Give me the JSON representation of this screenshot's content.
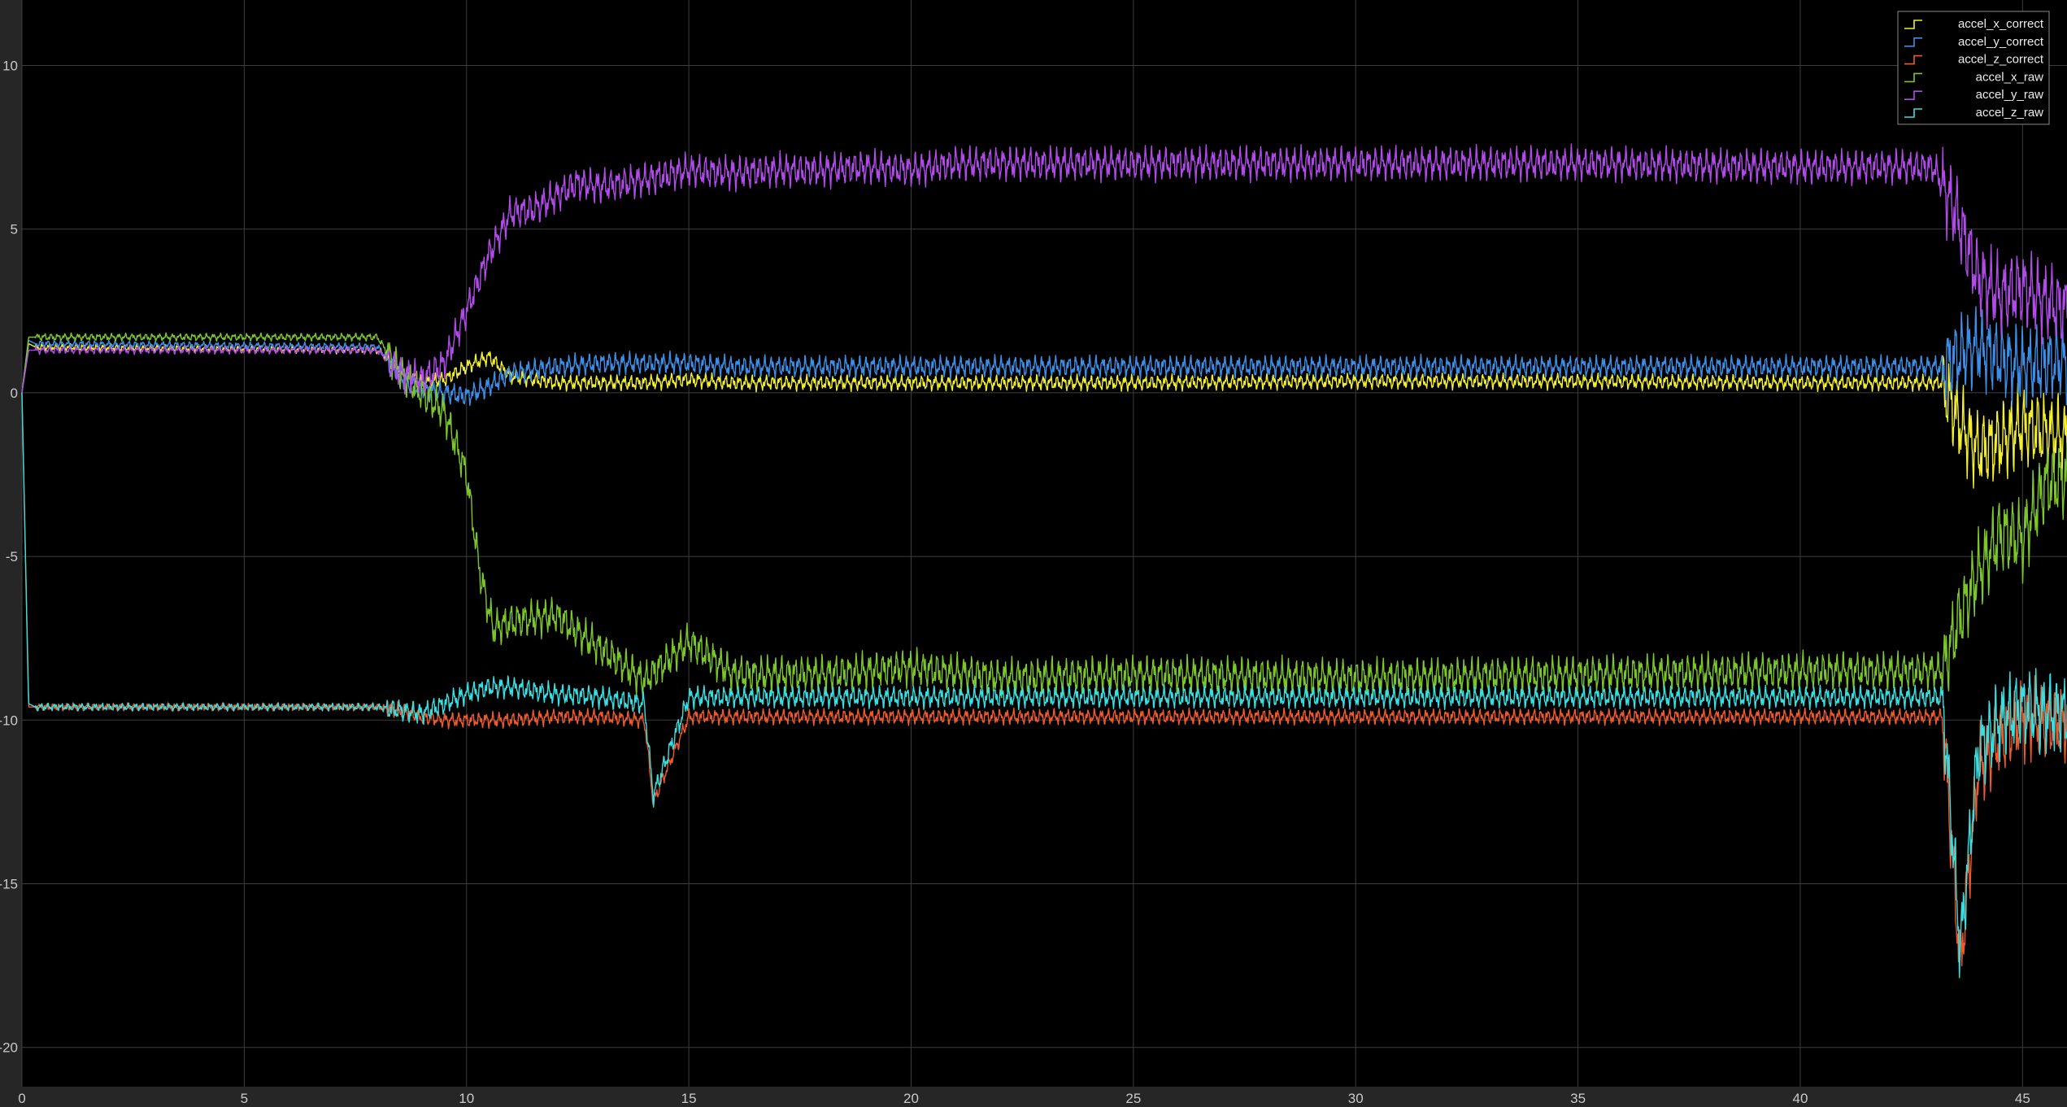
{
  "scope": {
    "background": "#000000",
    "frame": "#262626",
    "grid_color": "#3d3d3d"
  },
  "chart_data": {
    "type": "line",
    "title": "",
    "xlabel": "",
    "ylabel": "",
    "xlim": [
      0,
      46
    ],
    "ylim": [
      -21.2,
      12
    ],
    "grid": true,
    "legend_position": "top-right",
    "x_ticks": [
      0,
      5,
      10,
      15,
      20,
      25,
      30,
      35,
      40,
      45
    ],
    "x_tick_labels": [
      "0",
      "5",
      "10",
      "15",
      "20",
      "25",
      "30",
      "35",
      "40",
      "45"
    ],
    "y_ticks": [
      10,
      5,
      0,
      -5,
      -10,
      -15,
      -20
    ],
    "y_tick_labels": [
      "10",
      "5",
      "0",
      "-5",
      "-10",
      "-15",
      "-20"
    ],
    "series": [
      {
        "name": "accel_x_correct",
        "color": "#f2ef2c",
        "x": [
          0,
          0.15,
          0.3,
          8.0,
          8.3,
          8.6,
          9.0,
          9.5,
          10.0,
          10.5,
          11.0,
          12.0,
          13.0,
          14.0,
          15.0,
          16.0,
          18.0,
          20.0,
          22.0,
          25.0,
          30.0,
          35.0,
          40.0,
          43.2,
          43.6,
          44.0,
          44.5,
          45.0,
          45.5,
          46.0
        ],
        "y": [
          0.0,
          1.5,
          1.4,
          1.3,
          1.0,
          0.6,
          0.3,
          0.4,
          0.8,
          1.1,
          0.5,
          0.3,
          0.3,
          0.3,
          0.4,
          0.3,
          0.3,
          0.3,
          0.3,
          0.3,
          0.35,
          0.35,
          0.3,
          0.3,
          -1.0,
          -1.8,
          -1.5,
          -1.0,
          -1.2,
          -1.4
        ]
      },
      {
        "name": "accel_y_correct",
        "color": "#3c8fe8",
        "x": [
          0,
          0.15,
          0.3,
          8.0,
          8.3,
          8.6,
          9.0,
          9.5,
          10.0,
          10.5,
          11.0,
          12.0,
          13.0,
          14.0,
          15.0,
          16.0,
          18.0,
          20.0,
          22.0,
          25.0,
          30.0,
          35.0,
          40.0,
          43.2,
          43.6,
          44.0,
          44.5,
          45.0,
          45.5,
          46.0
        ],
        "y": [
          0.0,
          1.6,
          1.5,
          1.4,
          0.9,
          0.4,
          0.1,
          0.0,
          -0.1,
          0.2,
          0.6,
          0.8,
          0.9,
          0.9,
          0.9,
          0.8,
          0.8,
          0.8,
          0.8,
          0.8,
          0.8,
          0.8,
          0.8,
          0.8,
          1.2,
          1.4,
          1.0,
          0.8,
          0.9,
          1.0
        ]
      },
      {
        "name": "accel_z_correct",
        "color": "#f0592a",
        "x": [
          0,
          0.15,
          0.3,
          8.0,
          8.5,
          9.0,
          9.5,
          10.0,
          10.5,
          11.0,
          12.0,
          13.0,
          14.0,
          14.2,
          15.0,
          16.0,
          18.0,
          20.0,
          22.0,
          25.0,
          30.0,
          35.0,
          40.0,
          43.2,
          43.6,
          44.0,
          44.5,
          45.0,
          45.5,
          46.0
        ],
        "y": [
          0.0,
          -9.6,
          -9.6,
          -9.6,
          -9.7,
          -9.9,
          -10.0,
          -10.0,
          -10.0,
          -10.0,
          -9.9,
          -9.9,
          -10.0,
          -12.5,
          -9.9,
          -9.9,
          -9.9,
          -9.9,
          -9.9,
          -9.9,
          -9.9,
          -9.9,
          -9.9,
          -9.9,
          -17.5,
          -11.5,
          -10.5,
          -10.0,
          -10.0,
          -10.1
        ]
      },
      {
        "name": "accel_x_raw",
        "color": "#7cc62c",
        "x": [
          0,
          0.15,
          0.3,
          8.0,
          8.5,
          9.0,
          9.5,
          10.0,
          10.3,
          10.6,
          11.0,
          12.0,
          13.0,
          14.0,
          15.0,
          16.0,
          18.0,
          20.0,
          22.0,
          25.0,
          30.0,
          35.0,
          40.0,
          43.2,
          43.6,
          44.0,
          44.5,
          45.0,
          45.5,
          46.0
        ],
        "y": [
          0.0,
          1.7,
          1.7,
          1.7,
          0.6,
          0.0,
          -0.6,
          -2.5,
          -5.5,
          -7.2,
          -7.0,
          -6.8,
          -7.8,
          -8.8,
          -7.6,
          -8.6,
          -8.6,
          -8.4,
          -8.7,
          -8.6,
          -8.7,
          -8.6,
          -8.5,
          -8.5,
          -6.8,
          -5.5,
          -4.3,
          -4.5,
          -2.8,
          -2.6
        ]
      },
      {
        "name": "accel_y_raw",
        "color": "#b04ae8",
        "x": [
          0,
          0.15,
          0.3,
          8.0,
          8.5,
          9.0,
          9.5,
          10.0,
          10.5,
          11.0,
          11.5,
          12.0,
          12.5,
          13.0,
          14.0,
          15.0,
          16.0,
          17.0,
          18.0,
          19.0,
          20.0,
          21.0,
          22.0,
          25.0,
          30.0,
          35.0,
          40.0,
          43.0,
          43.5,
          44.0,
          44.5,
          45.0,
          45.5,
          46.0
        ],
        "y": [
          0.0,
          1.3,
          1.3,
          1.3,
          0.6,
          0.4,
          0.9,
          2.5,
          4.2,
          5.5,
          5.6,
          6.0,
          6.4,
          6.3,
          6.5,
          6.8,
          6.7,
          6.8,
          6.8,
          6.9,
          6.8,
          7.0,
          7.0,
          7.0,
          7.0,
          7.0,
          6.9,
          6.9,
          5.5,
          3.5,
          3.0,
          3.2,
          2.8,
          2.5
        ]
      },
      {
        "name": "accel_z_raw",
        "color": "#36e0e2",
        "x": [
          0,
          0.15,
          0.3,
          8.0,
          8.5,
          9.0,
          9.5,
          10.0,
          10.5,
          11.0,
          12.0,
          13.0,
          14.0,
          14.2,
          15.0,
          16.0,
          18.0,
          20.0,
          22.0,
          25.0,
          30.0,
          35.0,
          40.0,
          43.2,
          43.6,
          44.0,
          44.5,
          45.0,
          45.5,
          46.0
        ],
        "y": [
          0.0,
          -9.5,
          -9.6,
          -9.6,
          -9.7,
          -9.8,
          -9.5,
          -9.2,
          -9.0,
          -9.0,
          -9.2,
          -9.3,
          -9.5,
          -12.3,
          -9.3,
          -9.3,
          -9.3,
          -9.3,
          -9.3,
          -9.3,
          -9.3,
          -9.3,
          -9.3,
          -9.3,
          -17.0,
          -11.0,
          -10.0,
          -9.6,
          -9.8,
          -9.8
        ]
      }
    ]
  }
}
